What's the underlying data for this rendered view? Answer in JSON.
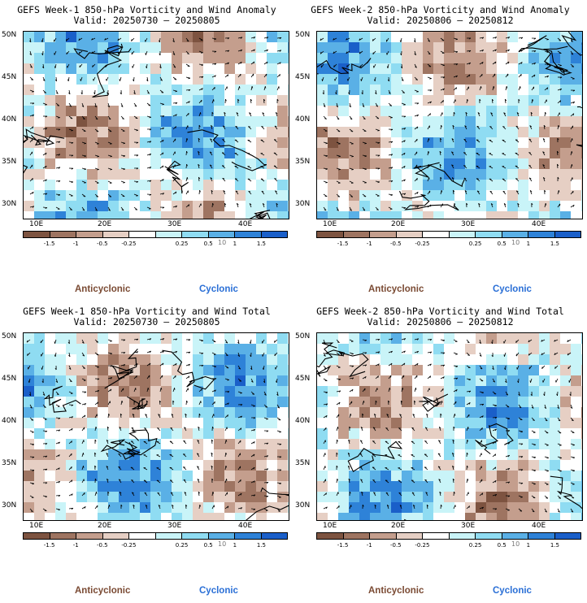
{
  "colors": {
    "scale": [
      "#7d5340",
      "#9e7461",
      "#c49e8d",
      "#e6cfc4",
      "#ffffff",
      "#c9f4f8",
      "#8fdcf2",
      "#5ab0e6",
      "#2e82d8",
      "#1a5fc9"
    ],
    "anticyclonic": "#7a4a33",
    "cyclonic": "#2a6fd6",
    "land_brown": "#8e6350",
    "sea_blue": "#3d8de0"
  },
  "colorbar": {
    "ticks": [
      "-1.5",
      "-1",
      "-0.5",
      "-0.25",
      "0.25",
      "0.5",
      "1",
      "1.5"
    ],
    "magnitude_label": "10"
  },
  "axes": {
    "lat_labels": [
      "50N",
      "45N",
      "40N",
      "35N",
      "30N"
    ],
    "lon_labels": [
      "10E",
      "20E",
      "30E",
      "40E"
    ]
  },
  "legend_words": {
    "anticyclonic": "Anticyclonic",
    "cyclonic": "Cyclonic"
  },
  "panels": [
    {
      "title": "GEFS Week-1 850-hPa Vorticity and Wind Anomaly",
      "valid": "Valid: 20250730 – 20250805"
    },
    {
      "title": "GEFS Week-2 850-hPa Vorticity and Wind Anomaly",
      "valid": "Valid: 20250806 – 20250812"
    },
    {
      "title": "GEFS Week-1 850-hPa Vorticity and Wind Total",
      "valid": "Valid: 20250730 – 20250805"
    },
    {
      "title": "GEFS Week-2 850-hPa Vorticity and Wind Total",
      "valid": "Valid: 20250806 – 20250812"
    }
  ]
}
